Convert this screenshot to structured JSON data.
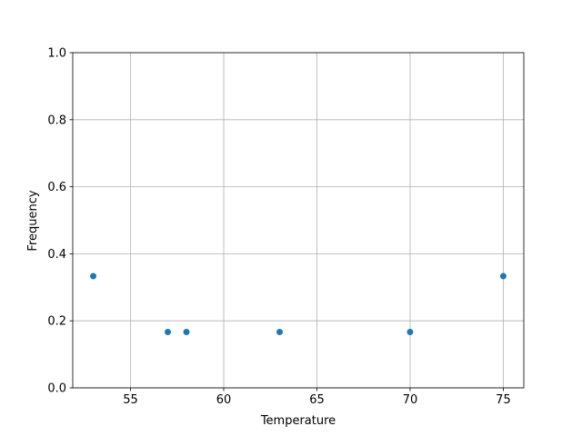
{
  "chart_data": {
    "type": "scatter",
    "title": "",
    "xlabel": "Temperature",
    "ylabel": "Frequency",
    "x": [
      53,
      57,
      58,
      63,
      70,
      75
    ],
    "y": [
      0.3333,
      0.1667,
      0.1667,
      0.1667,
      0.1667,
      0.3333
    ],
    "xlim": [
      51.9,
      76.1
    ],
    "ylim": [
      0.0,
      1.0
    ],
    "xticks": [
      55,
      60,
      65,
      70,
      75
    ],
    "xtick_labels": [
      "55",
      "60",
      "65",
      "70",
      "75"
    ],
    "yticks": [
      0.0,
      0.2,
      0.4,
      0.6,
      0.8,
      1.0
    ],
    "ytick_labels": [
      "0.0",
      "0.2",
      "0.4",
      "0.6",
      "0.8",
      "1.0"
    ],
    "grid": true,
    "marker_color": "#1f77b4",
    "grid_color": "#b0b0b0"
  }
}
